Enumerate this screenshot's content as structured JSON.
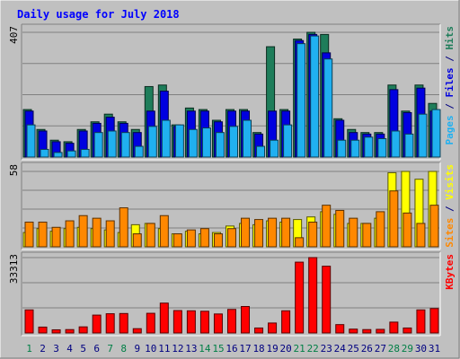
{
  "chart_data": {
    "type": "bar",
    "title": "Daily usage for July 2018",
    "colors": {
      "background": "#c0c0c0",
      "panel": "#c0c0c0",
      "frame_dark": "#808080",
      "frame_light": "#ffffff",
      "grid": "#808080",
      "hits": "#1e7d5a",
      "files": "#0000e0",
      "pages": "#20b0f0",
      "visits": "#ffff00",
      "sites": "#ff8800",
      "kbytes": "#ff0000",
      "weekday": "#000080",
      "weekend": "#007f46"
    },
    "categories": [
      "1",
      "2",
      "3",
      "4",
      "5",
      "6",
      "7",
      "8",
      "9",
      "10",
      "11",
      "12",
      "13",
      "14",
      "15",
      "16",
      "17",
      "18",
      "19",
      "20",
      "21",
      "22",
      "23",
      "24",
      "25",
      "26",
      "27",
      "28",
      "29",
      "30",
      "31"
    ],
    "weekend_days": [
      1,
      7,
      8,
      14,
      15,
      21,
      22,
      28,
      29
    ],
    "panels": [
      {
        "id": "top",
        "ymax_label": "407",
        "ylim": [
          0,
          407
        ],
        "side_labels": [
          {
            "text": "Pages",
            "color": "#20b0f0"
          },
          {
            "text": " / ",
            "color": "#000080"
          },
          {
            "text": "Files",
            "color": "#0000e0"
          },
          {
            "text": " / ",
            "color": "#000080"
          },
          {
            "text": "Hits",
            "color": "#1e7d5a"
          }
        ],
        "series": [
          {
            "name": "Hits",
            "color": "#1e7d5a",
            "values": [
              155,
              90,
              55,
              50,
              90,
              115,
              140,
              115,
              90,
              230,
              235,
              105,
              160,
              155,
              120,
              155,
              155,
              80,
              360,
              155,
              385,
              407,
              400,
              125,
              90,
              80,
              80,
              235,
              150,
              235,
              175
            ]
          },
          {
            "name": "Files",
            "color": "#0000e0",
            "values": [
              150,
              85,
              50,
              45,
              85,
              110,
              130,
              110,
              80,
              150,
              215,
              100,
              150,
              150,
              115,
              150,
              150,
              75,
              150,
              150,
              380,
              400,
              340,
              120,
              80,
              75,
              75,
              220,
              145,
              225,
              150
            ]
          },
          {
            "name": "Pages",
            "color": "#20b0f0",
            "values": [
              105,
              25,
              15,
              20,
              25,
              80,
              85,
              80,
              35,
              100,
              120,
              105,
              90,
              95,
              80,
              100,
              120,
              35,
              55,
              105,
              370,
              395,
              320,
              55,
              55,
              65,
              60,
              85,
              75,
              140,
              155
            ]
          }
        ]
      },
      {
        "id": "middle",
        "ymax_label": "58",
        "ylim": [
          0,
          58
        ],
        "side_labels": [
          {
            "text": "Sites",
            "color": "#ff8800"
          },
          {
            "text": " / ",
            "color": "#000080"
          },
          {
            "text": "Visits",
            "color": "#ffff00"
          }
        ],
        "series": [
          {
            "name": "Visits",
            "color": "#ffff00",
            "values": [
              11,
              14,
              12,
              14,
              15,
              14,
              13,
              11,
              17,
              18,
              14,
              10,
              12,
              10,
              11,
              16,
              18,
              17,
              20,
              19,
              21,
              23,
              27,
              25,
              18,
              18,
              22,
              57,
              58,
              52,
              58
            ]
          },
          {
            "name": "Sites",
            "color": "#ff8800",
            "values": [
              19,
              19,
              15,
              20,
              24,
              22,
              20,
              30,
              10,
              18,
              24,
              10,
              13,
              14,
              10,
              14,
              22,
              21,
              22,
              22,
              7,
              19,
              32,
              28,
              22,
              18,
              27,
              43,
              26,
              18,
              32
            ]
          }
        ]
      },
      {
        "id": "bottom",
        "ymax_label": "33313",
        "ylim": [
          0,
          33313
        ],
        "side_labels": [
          {
            "text": "KBytes",
            "color": "#ff0000"
          }
        ],
        "series": [
          {
            "name": "KBytes",
            "color": "#ff0000",
            "values": [
              10200,
              2600,
              1400,
              1500,
              2700,
              7900,
              8500,
              8600,
              1900,
              8700,
              13200,
              9900,
              9800,
              9600,
              8400,
              10400,
              11700,
              2200,
              4400,
              9800,
              31300,
              33313,
              29500,
              3700,
              1700,
              1500,
              1600,
              4800,
              2200,
              10200,
              10800
            ]
          }
        ]
      }
    ]
  }
}
